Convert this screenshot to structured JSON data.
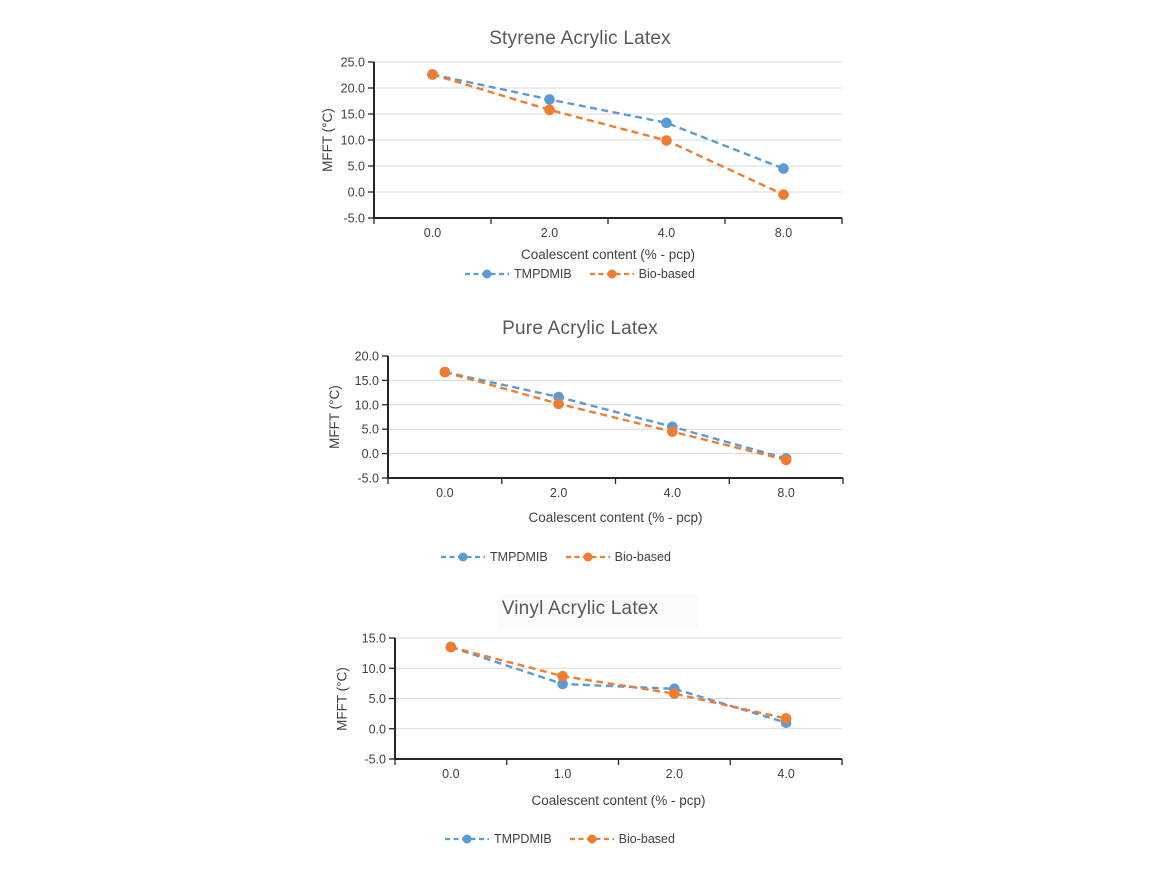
{
  "colors": {
    "blue": "#5B9BD5",
    "orange": "#ED7D31",
    "gridline": "#D9D9D9",
    "axis": "#262626",
    "title_text": "#595959",
    "tick_text": "#404040"
  },
  "chart_data": [
    {
      "type": "line",
      "title": "Styrene Acrylic Latex",
      "xlabel": "Coalescent content (% - pcp)",
      "ylabel": "MFFT (°C)",
      "categories": [
        "0.0",
        "2.0",
        "4.0",
        "8.0"
      ],
      "yticks": [
        "25.0",
        "20.0",
        "15.0",
        "10.0",
        "5.0",
        "0.0",
        "-5.0"
      ],
      "ylim": [
        -5,
        25
      ],
      "grid": true,
      "line_style": "dashed",
      "marker": "circle",
      "legend_position": "bottom",
      "series": [
        {
          "name": "TMPDMIB",
          "color": "#5B9BD5",
          "values": [
            22.6,
            17.8,
            13.3,
            4.5
          ]
        },
        {
          "name": "Bio-based",
          "color": "#ED7D31",
          "values": [
            22.6,
            15.8,
            9.9,
            -0.5
          ]
        }
      ]
    },
    {
      "type": "line",
      "title": "Pure Acrylic Latex",
      "xlabel": "Coalescent content (% - pcp)",
      "ylabel": "MFFT (°C)",
      "categories": [
        "0.0",
        "2.0",
        "4.0",
        "8.0"
      ],
      "yticks": [
        "20.0",
        "15.0",
        "10.0",
        "5.0",
        "0.0",
        "-5.0"
      ],
      "ylim": [
        -5,
        20
      ],
      "grid": true,
      "line_style": "dashed",
      "marker": "circle",
      "legend_position": "bottom",
      "series": [
        {
          "name": "TMPDMIB",
          "color": "#5B9BD5",
          "values": [
            16.7,
            11.6,
            5.5,
            -1.0
          ]
        },
        {
          "name": "Bio-based",
          "color": "#ED7D31",
          "values": [
            16.7,
            10.2,
            4.5,
            -1.3
          ]
        }
      ]
    },
    {
      "type": "line",
      "title": "Vinyl Acrylic Latex",
      "xlabel": "Coalescent content (% - pcp)",
      "ylabel": "MFFT (°C)",
      "categories": [
        "0.0",
        "1.0",
        "2.0",
        "4.0"
      ],
      "yticks": [
        "15.0",
        "10.0",
        "5.0",
        "0.0",
        "-5.0"
      ],
      "ylim": [
        -5,
        15
      ],
      "grid": true,
      "line_style": "dashed",
      "marker": "circle",
      "legend_position": "bottom",
      "series": [
        {
          "name": "TMPDMIB",
          "color": "#5B9BD5",
          "values": [
            13.5,
            7.4,
            6.6,
            1.0
          ]
        },
        {
          "name": "Bio-based",
          "color": "#ED7D31",
          "values": [
            13.5,
            8.7,
            5.8,
            1.7
          ]
        }
      ]
    }
  ]
}
